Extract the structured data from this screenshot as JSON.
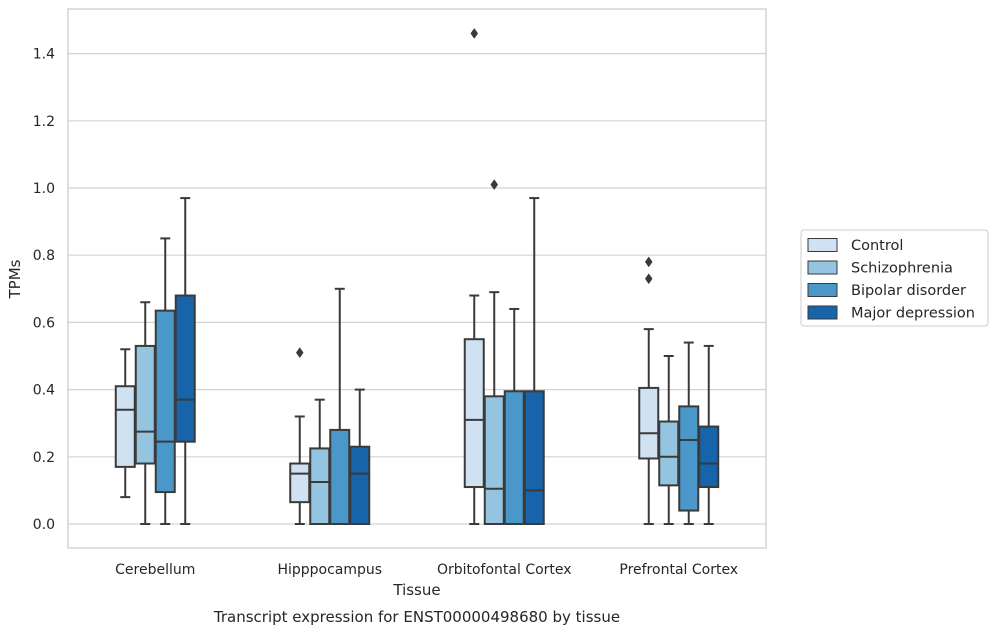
{
  "chart_data": {
    "type": "box",
    "xlabel": "Tissue",
    "ylabel": "TPMs",
    "caption": "Transcript expression for ENST00000498680 by tissue",
    "categories": [
      "Cerebellum",
      "Hipppocampus",
      "Orbitofontal Cortex",
      "Prefrontal Cortex"
    ],
    "ylim": [
      -0.07,
      1.54
    ],
    "yticks": [
      0.0,
      0.2,
      0.4,
      0.6,
      0.8,
      1.0,
      1.2,
      1.4
    ],
    "ytick_labels": [
      "0.0",
      "0.2",
      "0.4",
      "0.6",
      "0.8",
      "1.0",
      "1.2",
      "1.4"
    ],
    "grid": "horizontal",
    "legend_position": "right",
    "series": [
      {
        "name": "Control",
        "color": "#d0e1f2",
        "boxes": [
          {
            "whislo": 0.08,
            "q1": 0.17,
            "med": 0.34,
            "q3": 0.41,
            "whishi": 0.52,
            "fliers": []
          },
          {
            "whislo": 0.0,
            "q1": 0.065,
            "med": 0.15,
            "q3": 0.18,
            "whishi": 0.32,
            "fliers": [
              0.51
            ]
          },
          {
            "whislo": 0.0,
            "q1": 0.11,
            "med": 0.31,
            "q3": 0.55,
            "whishi": 0.68,
            "fliers": [
              1.46
            ]
          },
          {
            "whislo": 0.0,
            "q1": 0.195,
            "med": 0.27,
            "q3": 0.405,
            "whishi": 0.58,
            "fliers": [
              0.73,
              0.78
            ]
          }
        ]
      },
      {
        "name": "Schizophrenia",
        "color": "#94c4df",
        "boxes": [
          {
            "whislo": 0.0,
            "q1": 0.18,
            "med": 0.275,
            "q3": 0.53,
            "whishi": 0.66,
            "fliers": []
          },
          {
            "whislo": 0.0,
            "q1": 0.0,
            "med": 0.125,
            "q3": 0.225,
            "whishi": 0.37,
            "fliers": []
          },
          {
            "whislo": 0.0,
            "q1": 0.0,
            "med": 0.105,
            "q3": 0.38,
            "whishi": 0.69,
            "fliers": [
              1.01
            ]
          },
          {
            "whislo": 0.0,
            "q1": 0.115,
            "med": 0.2,
            "q3": 0.305,
            "whishi": 0.5,
            "fliers": []
          }
        ]
      },
      {
        "name": "Bipolar disorder",
        "color": "#4a98c9",
        "boxes": [
          {
            "whislo": 0.0,
            "q1": 0.095,
            "med": 0.245,
            "q3": 0.635,
            "whishi": 0.85,
            "fliers": []
          },
          {
            "whislo": 0.0,
            "q1": 0.0,
            "med": 0.0,
            "q3": 0.28,
            "whishi": 0.7,
            "fliers": []
          },
          {
            "whislo": 0.0,
            "q1": 0.0,
            "med": 0.0,
            "q3": 0.395,
            "whishi": 0.64,
            "fliers": []
          },
          {
            "whislo": 0.0,
            "q1": 0.04,
            "med": 0.25,
            "q3": 0.35,
            "whishi": 0.54,
            "fliers": []
          }
        ]
      },
      {
        "name": "Major depression",
        "color": "#1764ab",
        "boxes": [
          {
            "whislo": 0.0,
            "q1": 0.245,
            "med": 0.37,
            "q3": 0.68,
            "whishi": 0.97,
            "fliers": []
          },
          {
            "whislo": 0.0,
            "q1": 0.0,
            "med": 0.15,
            "q3": 0.23,
            "whishi": 0.4,
            "fliers": []
          },
          {
            "whislo": 0.0,
            "q1": 0.0,
            "med": 0.1,
            "q3": 0.395,
            "whishi": 0.97,
            "fliers": []
          },
          {
            "whislo": 0.0,
            "q1": 0.11,
            "med": 0.18,
            "q3": 0.29,
            "whishi": 0.53,
            "fliers": []
          }
        ]
      }
    ]
  }
}
